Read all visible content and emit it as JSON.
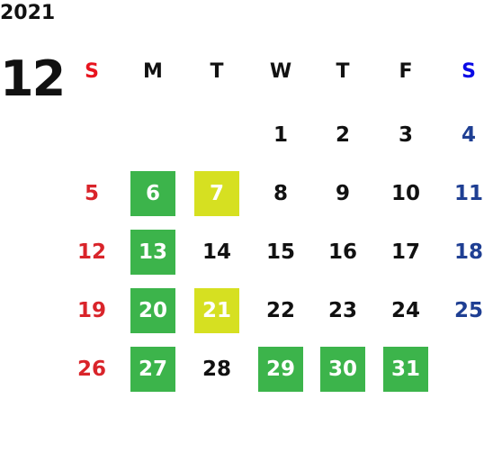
{
  "year": "2021",
  "month": "12",
  "weekdays": [
    {
      "label": "S",
      "color": "#e8141e"
    },
    {
      "label": "M",
      "color": "#111111"
    },
    {
      "label": "T",
      "color": "#111111"
    },
    {
      "label": "W",
      "color": "#111111"
    },
    {
      "label": "T",
      "color": "#111111"
    },
    {
      "label": "F",
      "color": "#111111"
    },
    {
      "label": "S",
      "color": "#0a0ae6"
    }
  ],
  "day_colors": [
    "#d9242a",
    "#111111",
    "#111111",
    "#111111",
    "#111111",
    "#111111",
    "#1f3f93"
  ],
  "weeks": [
    [
      null,
      null,
      null,
      {
        "day": 1
      },
      {
        "day": 2
      },
      {
        "day": 3
      },
      {
        "day": 4
      }
    ],
    [
      {
        "day": 5
      },
      {
        "day": 6,
        "bg": "#3cb44b"
      },
      {
        "day": 7,
        "bg": "#d6e021"
      },
      {
        "day": 8
      },
      {
        "day": 9
      },
      {
        "day": 10
      },
      {
        "day": 11
      }
    ],
    [
      {
        "day": 12
      },
      {
        "day": 13,
        "bg": "#3cb44b"
      },
      {
        "day": 14
      },
      {
        "day": 15
      },
      {
        "day": 16
      },
      {
        "day": 17
      },
      {
        "day": 18
      }
    ],
    [
      {
        "day": 19
      },
      {
        "day": 20,
        "bg": "#3cb44b"
      },
      {
        "day": 21,
        "bg": "#d6e021"
      },
      {
        "day": 22
      },
      {
        "day": 23
      },
      {
        "day": 24
      },
      {
        "day": 25
      }
    ],
    [
      {
        "day": 26
      },
      {
        "day": 27,
        "bg": "#3cb44b"
      },
      {
        "day": 28
      },
      {
        "day": 29,
        "bg": "#3cb44b"
      },
      {
        "day": 30,
        "bg": "#3cb44b"
      },
      {
        "day": 31,
        "bg": "#3cb44b"
      },
      null
    ]
  ]
}
